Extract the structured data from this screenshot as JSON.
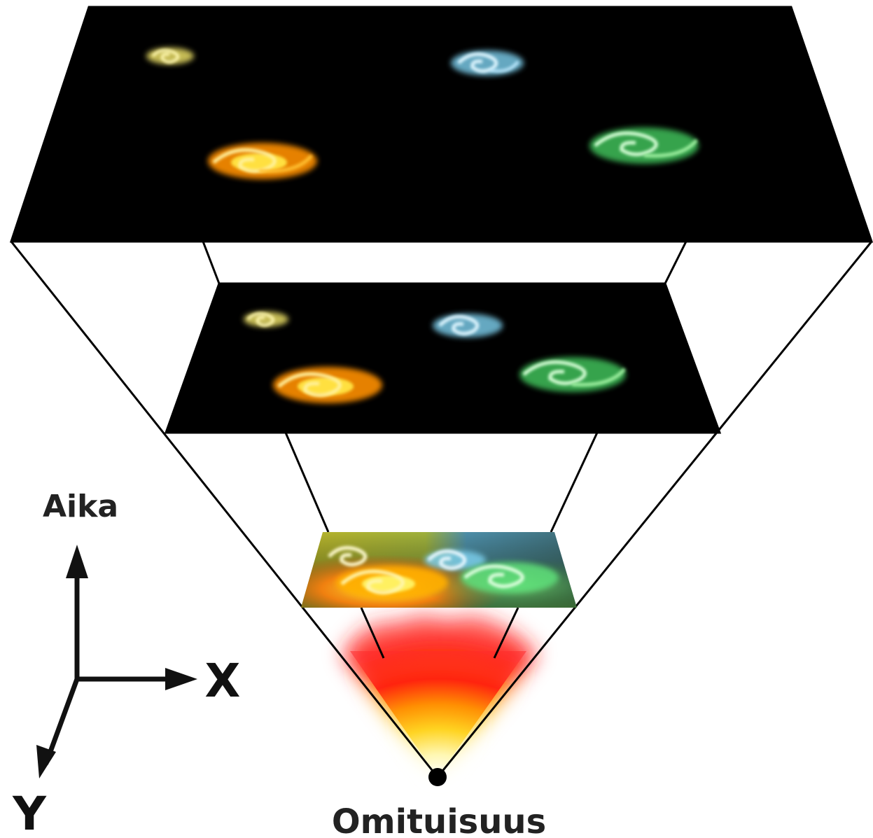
{
  "labels": {
    "time_axis": "Aika",
    "x_axis": "X",
    "y_axis": "Y",
    "origin": "Omituisuus"
  },
  "colors": {
    "space_slice": "#000000",
    "outline": "#000000",
    "galaxy_yellow": "#f6e96b",
    "galaxy_blue": "#7fd3f2",
    "galaxy_orange": "#ffb000",
    "galaxy_green": "#5fe07a",
    "fireball_red": "#ff1a10",
    "fireball_core": "#fffbd0"
  },
  "slices": [
    {
      "name": "slice-top",
      "galaxies": [
        "yellow",
        "blue",
        "orange",
        "green"
      ]
    },
    {
      "name": "slice-middle",
      "galaxies": [
        "yellow",
        "blue",
        "orange",
        "green"
      ]
    },
    {
      "name": "slice-early",
      "galaxies": [
        "yellow",
        "blue",
        "orange",
        "green"
      ]
    }
  ]
}
